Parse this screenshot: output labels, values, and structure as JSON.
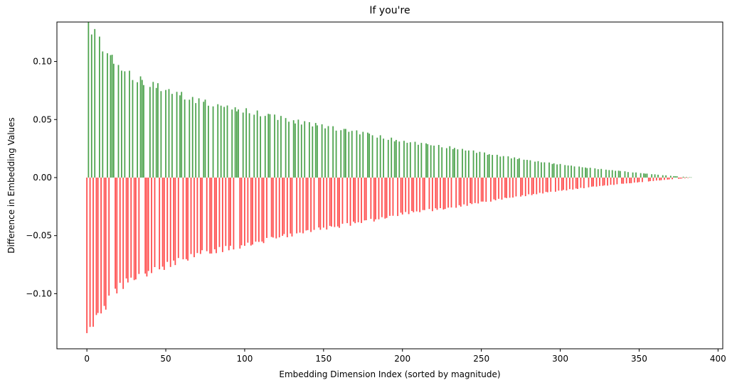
{
  "chart_data": {
    "type": "bar",
    "title": "If you're",
    "xlabel": "Embedding Dimension Index (sorted by magnitude)",
    "ylabel": "Difference in Embedding Values",
    "xlim": [
      -19,
      403
    ],
    "ylim": [
      -0.1475,
      0.134
    ],
    "x_ticks": [
      0,
      50,
      100,
      150,
      200,
      250,
      300,
      350,
      400
    ],
    "y_ticks": [
      -0.1,
      -0.05,
      0.0,
      0.05,
      0.1
    ],
    "y_tick_labels": [
      "−0.10",
      "−0.05",
      "0.00",
      "0.05",
      "0.10"
    ],
    "x_tick_labels": [
      "0",
      "50",
      "100",
      "150",
      "200",
      "250",
      "300",
      "350",
      "400"
    ],
    "colors": {
      "positive": "#4da34d",
      "negative": "#ff4c4c"
    },
    "grid": false,
    "legend": "none",
    "n_dimensions": 384,
    "anchors_magnitude": [
      [
        0,
        0.134
      ],
      [
        5,
        0.124
      ],
      [
        10,
        0.113
      ],
      [
        20,
        0.095
      ],
      [
        30,
        0.086
      ],
      [
        50,
        0.076
      ],
      [
        70,
        0.066
      ],
      [
        100,
        0.058
      ],
      [
        130,
        0.049
      ],
      [
        150,
        0.044
      ],
      [
        180,
        0.037
      ],
      [
        200,
        0.031
      ],
      [
        230,
        0.026
      ],
      [
        260,
        0.019
      ],
      [
        290,
        0.013
      ],
      [
        320,
        0.008
      ],
      [
        350,
        0.004
      ],
      [
        370,
        0.0015
      ],
      [
        383,
        0.0002
      ]
    ],
    "sign_pattern": "+--+-+--+-+--+-+++--+-+-+--+-+--+-+++---+-+-++-+--+-+-+--+-++-+--+-+-+-+--++-+--+--+-+-+-+--+-+++--+-+-+--+-+-+--+-++--+-+-+--+-+--++-+-+-+--+-+-++--+-+-+--+-+--+-++-+-+--+-+-+--++-+--+-+-+--+-+-++-+--+-+-+--+-+-+--++-+-+--+-+--+-+-++-+--+-+-+--+-+-+--+-++-+--+-+-+--+-+-+-++--+-+-+--+-+-+-+--+-++-+-+--+-+-+-+--+-+-++-+--+-+-+--+-+-+-+-+"
  }
}
